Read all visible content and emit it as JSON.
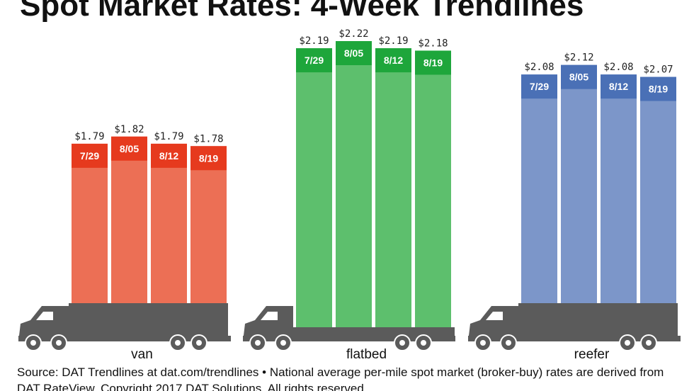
{
  "chart_data": {
    "type": "bar",
    "title": "Spot Market Rates: 4-Week Trendlines",
    "categories": [
      "7/29",
      "8/05",
      "8/12",
      "8/19"
    ],
    "series": [
      {
        "name": "van",
        "color": "#ec6f55",
        "band_color": "#e63a1e",
        "values": [
          1.79,
          1.82,
          1.79,
          1.78
        ],
        "value_labels": [
          "$1.79",
          "$1.82",
          "$1.79",
          "$1.78"
        ]
      },
      {
        "name": "flatbed",
        "color": "#5dbf6d",
        "band_color": "#1ea63b",
        "values": [
          2.19,
          2.22,
          2.19,
          2.18
        ],
        "value_labels": [
          "$2.19",
          "$2.22",
          "$2.19",
          "$2.18"
        ]
      },
      {
        "name": "reefer",
        "color": "#7c96c9",
        "band_color": "#4a70b6",
        "values": [
          2.08,
          2.12,
          2.08,
          2.07
        ],
        "value_labels": [
          "$2.08",
          "$2.12",
          "$2.08",
          "$2.07"
        ]
      }
    ],
    "source": "Source: DAT Trendlines at dat.com/trendlines • National average per-mile spot market (broker-buy) rates are derived from DAT RateView. Copyright 2017 DAT Solutions. All rights reserved."
  }
}
